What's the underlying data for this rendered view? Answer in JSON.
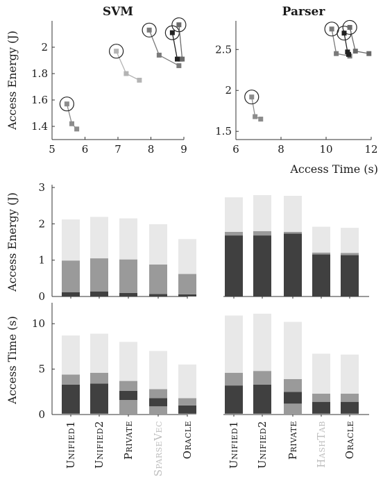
{
  "colors": {
    "light": "#e8e8e8",
    "mid": "#9a9a9a",
    "dark": "#404040",
    "black": "#222222",
    "axis": "#333333",
    "disabled_label": "#bdbdbd"
  },
  "chart_data": [
    {
      "id": "svm-scatter",
      "type": "scatter",
      "title": "SVM",
      "xlabel": "",
      "ylabel": "Access Energy (J)",
      "xlim": [
        5,
        9
      ],
      "ylim": [
        1.3,
        2.2
      ],
      "xticks": [
        5,
        6,
        7,
        8,
        9
      ],
      "yticks": [
        1.4,
        1.6,
        1.8,
        2
      ],
      "ytick_labels": [
        "1.4",
        "1.6",
        "1.8",
        "2"
      ],
      "series": [
        {
          "color": "#8c8c8c",
          "circled": [
            5.45,
            1.57
          ],
          "points": [
            [
              5.45,
              1.57
            ],
            [
              5.6,
              1.42
            ],
            [
              5.75,
              1.38
            ]
          ]
        },
        {
          "color": "#b4b4b4",
          "circled": [
            6.95,
            1.97
          ],
          "points": [
            [
              6.95,
              1.97
            ],
            [
              7.25,
              1.8
            ],
            [
              7.65,
              1.75
            ]
          ]
        },
        {
          "color": "#7a7a7a",
          "circled": [
            7.95,
            2.13
          ],
          "points": [
            [
              7.95,
              2.13
            ],
            [
              8.25,
              1.94
            ],
            [
              8.85,
              1.86
            ]
          ]
        },
        {
          "color": "#222222",
          "circled": [
            8.65,
            2.11
          ],
          "points": [
            [
              8.65,
              2.11
            ],
            [
              8.8,
              1.91
            ],
            [
              8.9,
              1.91
            ]
          ]
        },
        {
          "color": "#6a6a6a",
          "circled": [
            8.85,
            2.17
          ],
          "points": [
            [
              8.85,
              2.17
            ],
            [
              8.95,
              1.91
            ]
          ]
        }
      ]
    },
    {
      "id": "parser-scatter",
      "type": "scatter",
      "title": "Parser",
      "xlabel": "Access Time (s)",
      "ylabel": "",
      "xlim": [
        6,
        12
      ],
      "ylim": [
        1.4,
        2.85
      ],
      "xticks": [
        6,
        8,
        10,
        12
      ],
      "yticks": [
        1.5,
        2,
        2.5
      ],
      "ytick_labels": [
        "1.5",
        "2",
        "2.5"
      ],
      "series": [
        {
          "color": "#8c8c8c",
          "circled": [
            6.7,
            1.92
          ],
          "points": [
            [
              6.7,
              1.92
            ],
            [
              6.85,
              1.68
            ],
            [
              7.1,
              1.65
            ]
          ]
        },
        {
          "color": "#7a7a7a",
          "circled": [
            10.25,
            2.75
          ],
          "points": [
            [
              10.25,
              2.75
            ],
            [
              10.45,
              2.45
            ],
            [
              11.05,
              2.42
            ]
          ]
        },
        {
          "color": "#222222",
          "circled": [
            10.8,
            2.7
          ],
          "points": [
            [
              10.8,
              2.7
            ],
            [
              10.95,
              2.47
            ],
            [
              11.0,
              2.44
            ]
          ]
        },
        {
          "color": "#6a6a6a",
          "circled": [
            11.05,
            2.77
          ],
          "points": [
            [
              11.05,
              2.77
            ],
            [
              11.3,
              2.48
            ],
            [
              11.9,
              2.45
            ]
          ]
        }
      ]
    },
    {
      "id": "energy-bars",
      "type": "bar",
      "stacked": true,
      "ylabel": "Access Energy (J)",
      "ylim": [
        0,
        3
      ],
      "yticks": [
        0,
        1,
        2,
        3
      ],
      "groups": [
        {
          "name": "SVM",
          "categories": [
            "Unified1",
            "Unified2",
            "Private",
            "SparseVec",
            "Oracle"
          ],
          "stacks": [
            [
              0.12,
              0.87,
              1.13
            ],
            [
              0.14,
              0.91,
              1.14
            ],
            [
              0.1,
              0.92,
              1.13
            ],
            [
              0.07,
              0.81,
              1.11
            ],
            [
              0.06,
              0.56,
              0.96
            ]
          ]
        },
        {
          "name": "Parser",
          "categories": [
            "Unified1",
            "Unified2",
            "Private",
            "HashTab",
            "Oracle"
          ],
          "stacks": [
            [
              1.68,
              0.1,
              0.95
            ],
            [
              1.68,
              0.12,
              0.99
            ],
            [
              1.73,
              0.05,
              0.99
            ],
            [
              1.16,
              0.05,
              0.71
            ],
            [
              1.14,
              0.06,
              0.69
            ]
          ]
        }
      ]
    },
    {
      "id": "time-bars",
      "type": "bar",
      "stacked": true,
      "ylabel": "Access Time (s)",
      "ylim": [
        0,
        12
      ],
      "yticks": [
        0,
        5,
        10
      ],
      "groups": [
        {
          "name": "SVM",
          "categories": [
            "Unified1",
            "Unified2",
            "Private",
            "SparseVec",
            "Oracle"
          ],
          "stacks": [
            [
              0.1,
              3.2,
              1.1,
              4.3
            ],
            [
              0.1,
              3.3,
              1.2,
              4.3
            ],
            [
              1.6,
              1.0,
              1.1,
              4.3
            ],
            [
              0.9,
              0.9,
              1.0,
              4.2
            ],
            [
              0.1,
              0.9,
              0.8,
              3.7
            ]
          ]
        },
        {
          "name": "Parser",
          "categories": [
            "Unified1",
            "Unified2",
            "Private",
            "HashTab",
            "Oracle"
          ],
          "stacks": [
            [
              0.1,
              3.1,
              1.4,
              6.3
            ],
            [
              0.1,
              3.2,
              1.5,
              6.3
            ],
            [
              1.2,
              1.3,
              1.4,
              6.3
            ],
            [
              0.1,
              1.3,
              0.9,
              4.4
            ],
            [
              0.1,
              1.3,
              0.9,
              4.3
            ]
          ]
        }
      ]
    }
  ],
  "category_label_colors": {
    "SparseVec": "#bdbdbd",
    "HashTab": "#bdbdbd"
  }
}
